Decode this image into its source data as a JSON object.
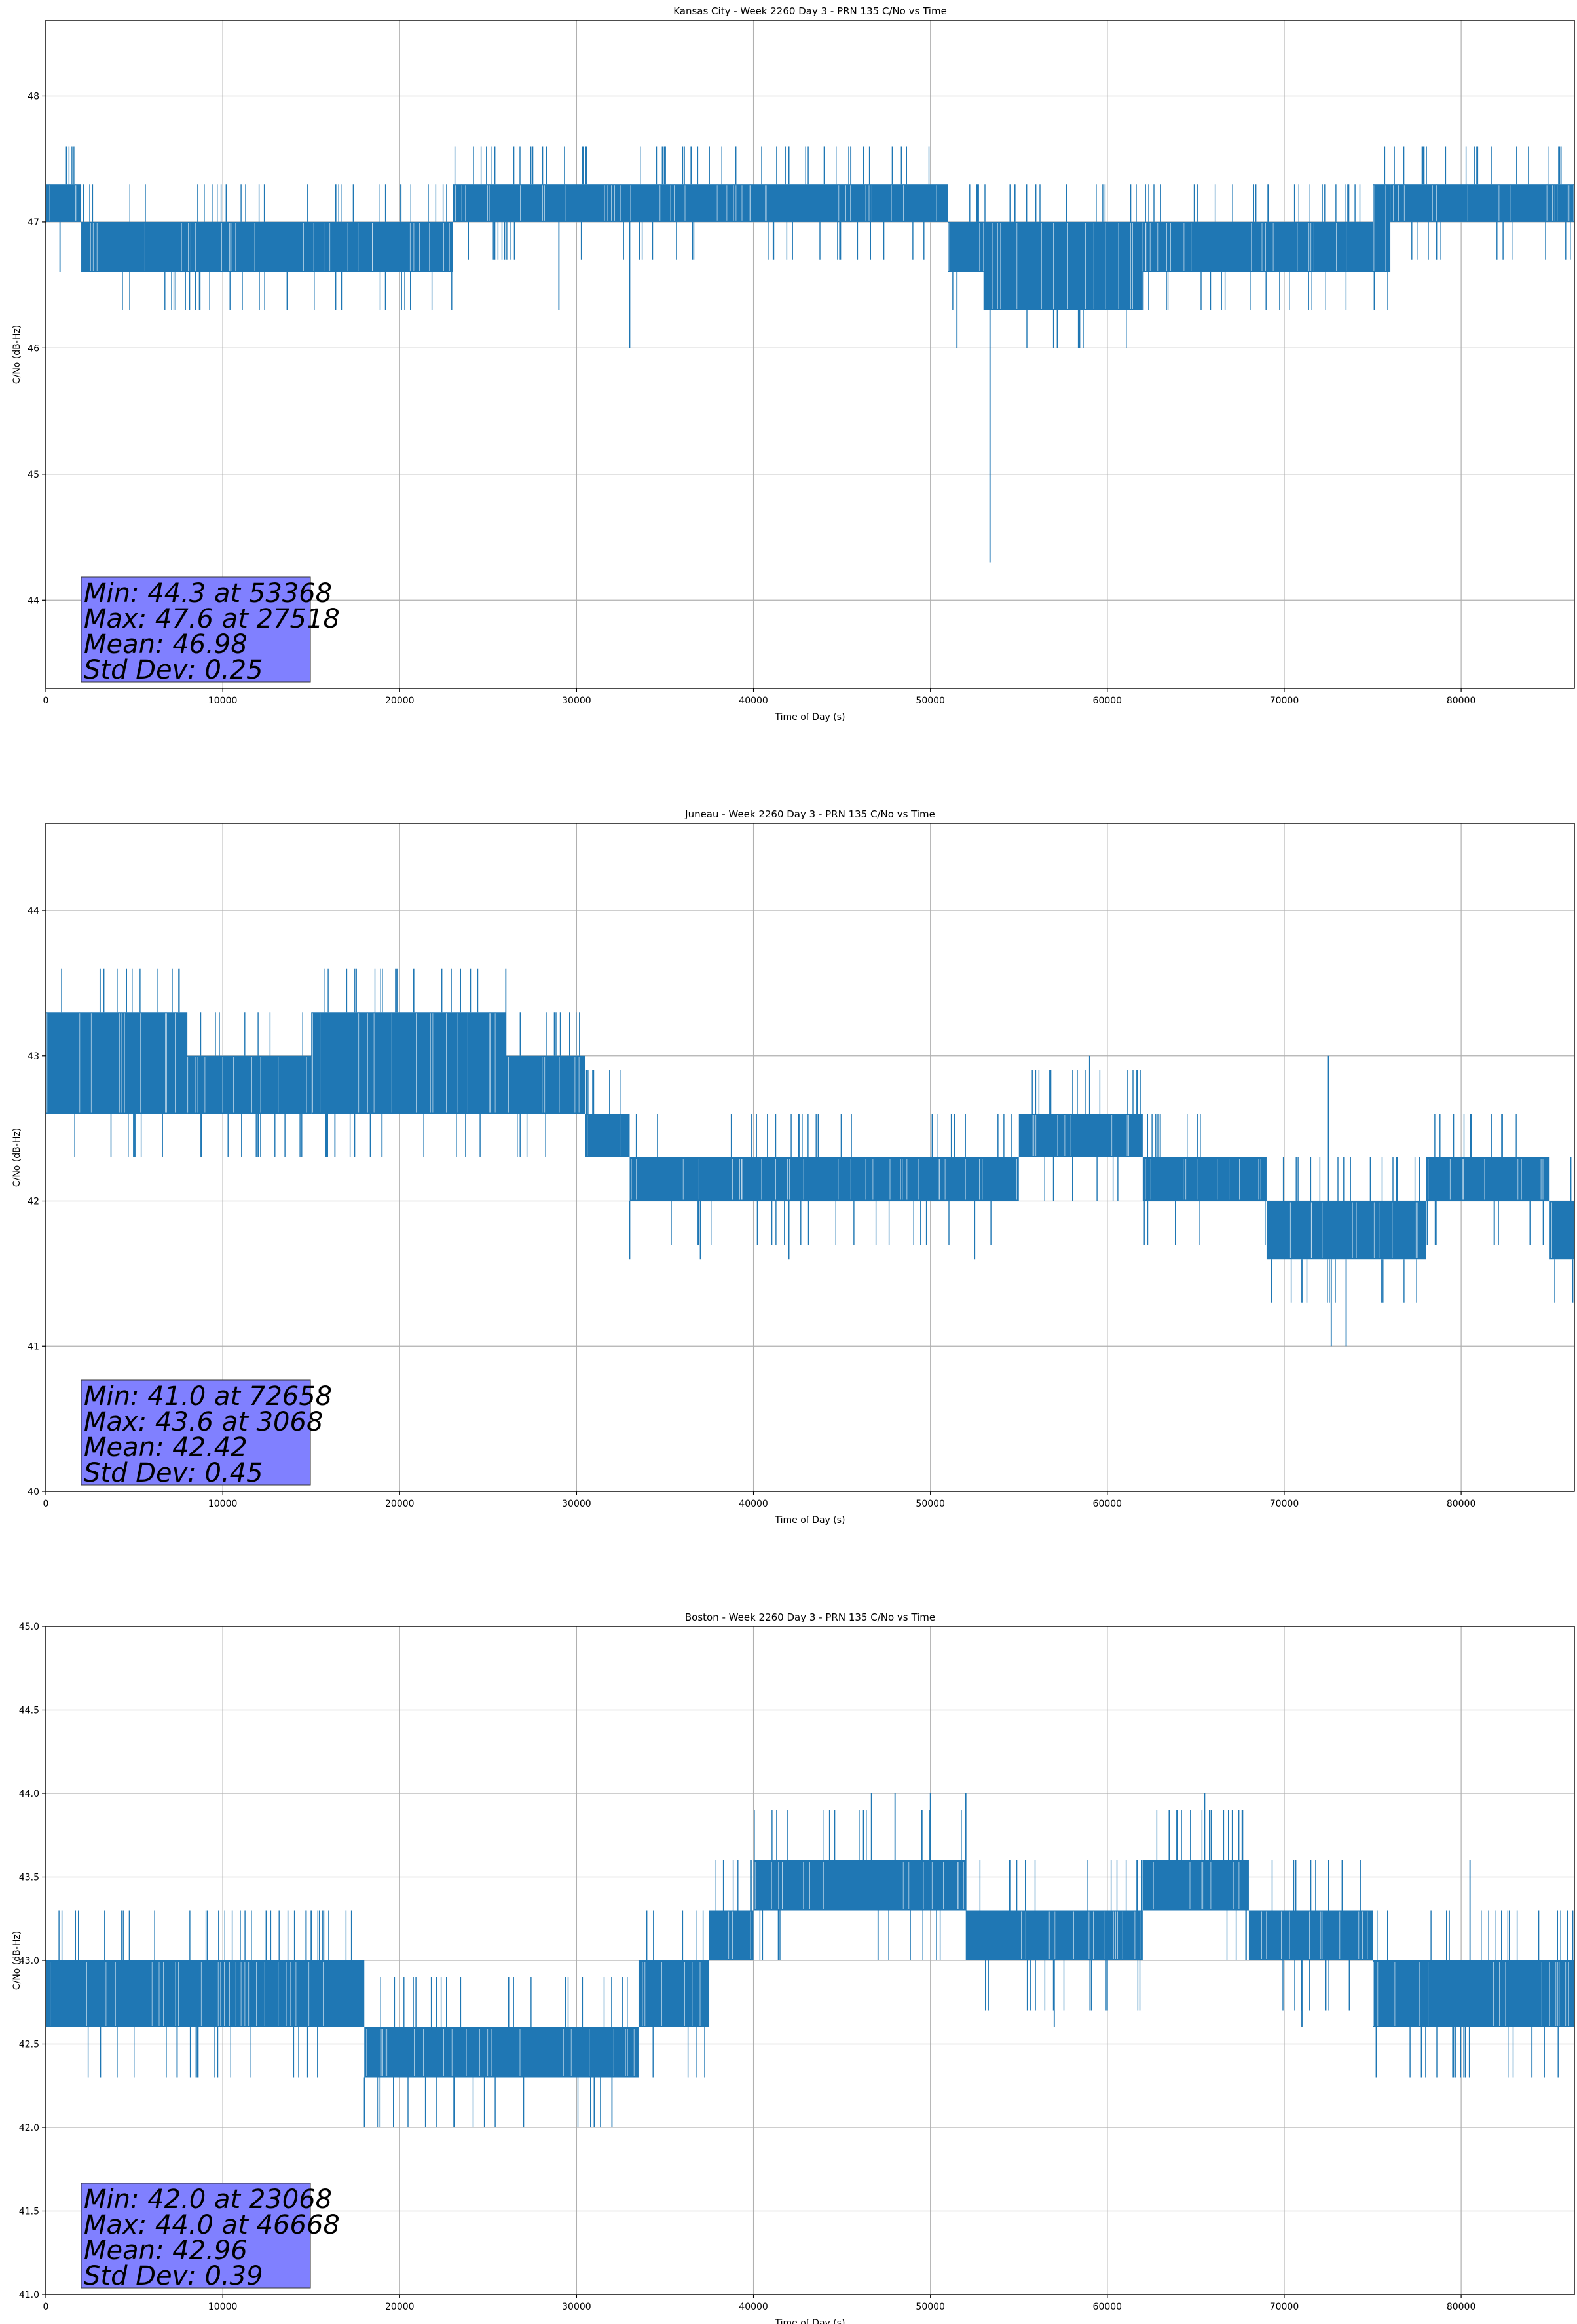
{
  "chart_data": [
    {
      "type": "line",
      "title": "Kansas City - Week 2260 Day 3 - PRN 135 C/No vs Time",
      "xlabel": "Time of Day (s)",
      "ylabel": "C/No (dB-Hz)",
      "xlim": [
        0,
        86400
      ],
      "ylim": [
        43.3,
        48.6
      ],
      "xticks": [
        0,
        10000,
        20000,
        30000,
        40000,
        50000,
        60000,
        70000,
        80000
      ],
      "yticks": [
        44,
        45,
        46,
        47,
        48
      ],
      "grid": true,
      "series_color": "#1f77b4",
      "annotation": [
        "Min: 44.3 at 53368",
        "Max: 47.6 at 27518",
        "Mean: 46.98",
        "Std Dev: 0.25"
      ],
      "band": [
        {
          "x": [
            0,
            2000
          ],
          "low": 47.0,
          "high": 47.3
        },
        {
          "x": [
            2000,
            23000
          ],
          "low": 46.6,
          "high": 47.0
        },
        {
          "x": [
            23000,
            51000
          ],
          "low": 47.0,
          "high": 47.3
        },
        {
          "x": [
            51000,
            53000
          ],
          "low": 46.6,
          "high": 47.0
        },
        {
          "x": [
            53000,
            62000
          ],
          "low": 46.3,
          "high": 47.0
        },
        {
          "x": [
            62000,
            75000
          ],
          "low": 46.6,
          "high": 47.0
        },
        {
          "x": [
            75000,
            76000
          ],
          "low": 46.6,
          "high": 47.3
        },
        {
          "x": [
            76000,
            86400
          ],
          "low": 47.0,
          "high": 47.3
        }
      ],
      "spikes": [
        {
          "x": 53368,
          "y": 44.3
        },
        {
          "x": 27518,
          "y": 47.6
        },
        {
          "x": 33000,
          "y": 46.0
        },
        {
          "x": 51500,
          "y": 46.0
        },
        {
          "x": 19200,
          "y": 46.3
        },
        {
          "x": 29000,
          "y": 46.3
        },
        {
          "x": 35000,
          "y": 47.6
        },
        {
          "x": 39000,
          "y": 47.6
        },
        {
          "x": 42000,
          "y": 47.6
        },
        {
          "x": 45500,
          "y": 47.6
        },
        {
          "x": 30500,
          "y": 47.6
        },
        {
          "x": 37500,
          "y": 47.6
        },
        {
          "x": 44000,
          "y": 47.6
        },
        {
          "x": 800,
          "y": 46.6
        }
      ]
    },
    {
      "type": "line",
      "title": "Juneau - Week 2260 Day 3 - PRN 135 C/No vs Time",
      "xlabel": "Time of Day (s)",
      "ylabel": "C/No (dB-Hz)",
      "xlim": [
        0,
        86400
      ],
      "ylim": [
        40,
        44.6
      ],
      "xticks": [
        0,
        10000,
        20000,
        30000,
        40000,
        50000,
        60000,
        70000,
        80000
      ],
      "yticks": [
        40,
        41,
        42,
        43,
        44
      ],
      "grid": true,
      "series_color": "#1f77b4",
      "annotation": [
        "Min: 41.0 at 72658",
        "Max: 43.6 at 3068",
        "Mean: 42.42",
        "Std Dev: 0.45"
      ],
      "band": [
        {
          "x": [
            0,
            8000
          ],
          "low": 42.6,
          "high": 43.3
        },
        {
          "x": [
            8000,
            15000
          ],
          "low": 42.6,
          "high": 43.0
        },
        {
          "x": [
            15000,
            26000
          ],
          "low": 42.6,
          "high": 43.3
        },
        {
          "x": [
            26000,
            30500
          ],
          "low": 42.6,
          "high": 43.0
        },
        {
          "x": [
            30500,
            33000
          ],
          "low": 42.3,
          "high": 42.6
        },
        {
          "x": [
            33000,
            55000
          ],
          "low": 42.0,
          "high": 42.3
        },
        {
          "x": [
            55000,
            62000
          ],
          "low": 42.3,
          "high": 42.6
        },
        {
          "x": [
            62000,
            69000
          ],
          "low": 42.0,
          "high": 42.3
        },
        {
          "x": [
            69000,
            78000
          ],
          "low": 41.6,
          "high": 42.0
        },
        {
          "x": [
            78000,
            85000
          ],
          "low": 42.0,
          "high": 42.3
        },
        {
          "x": [
            85000,
            86400
          ],
          "low": 41.6,
          "high": 42.0
        }
      ],
      "spikes": [
        {
          "x": 3068,
          "y": 43.6
        },
        {
          "x": 17000,
          "y": 43.6
        },
        {
          "x": 24000,
          "y": 43.6
        },
        {
          "x": 26000,
          "y": 43.6
        },
        {
          "x": 72658,
          "y": 41.0
        },
        {
          "x": 73500,
          "y": 41.0
        },
        {
          "x": 59000,
          "y": 43.0
        },
        {
          "x": 72500,
          "y": 43.0
        },
        {
          "x": 5000,
          "y": 42.3
        },
        {
          "x": 12000,
          "y": 42.3
        },
        {
          "x": 19000,
          "y": 42.3
        },
        {
          "x": 33000,
          "y": 41.6
        },
        {
          "x": 37000,
          "y": 41.6
        },
        {
          "x": 42000,
          "y": 41.6
        },
        {
          "x": 52500,
          "y": 41.6
        },
        {
          "x": 71000,
          "y": 41.3
        }
      ]
    },
    {
      "type": "line",
      "title": "Boston - Week 2260 Day 3 - PRN 135 C/No vs Time",
      "xlabel": "Time of Day (s)",
      "ylabel": "C/No (dB-Hz)",
      "xlim": [
        0,
        86400
      ],
      "ylim": [
        41.0,
        45.0
      ],
      "xticks": [
        0,
        10000,
        20000,
        30000,
        40000,
        50000,
        60000,
        70000,
        80000
      ],
      "yticks": [
        41.0,
        41.5,
        42.0,
        42.5,
        43.0,
        43.5,
        44.0,
        44.5,
        45.0
      ],
      "grid": true,
      "series_color": "#1f77b4",
      "annotation": [
        "Min: 42.0 at 23068",
        "Max: 44.0 at 46668",
        "Mean: 42.96",
        "Std Dev: 0.39"
      ],
      "band": [
        {
          "x": [
            0,
            18000
          ],
          "low": 42.6,
          "high": 43.0
        },
        {
          "x": [
            18000,
            33500
          ],
          "low": 42.3,
          "high": 42.6
        },
        {
          "x": [
            33500,
            37500
          ],
          "low": 42.6,
          "high": 43.0
        },
        {
          "x": [
            37500,
            40000
          ],
          "low": 43.0,
          "high": 43.3
        },
        {
          "x": [
            40000,
            52000
          ],
          "low": 43.3,
          "high": 43.6
        },
        {
          "x": [
            52000,
            62000
          ],
          "low": 43.0,
          "high": 43.3
        },
        {
          "x": [
            62000,
            68000
          ],
          "low": 43.3,
          "high": 43.6
        },
        {
          "x": [
            68000,
            75000
          ],
          "low": 43.0,
          "high": 43.3
        },
        {
          "x": [
            75000,
            86400
          ],
          "low": 42.6,
          "high": 43.0
        }
      ],
      "spikes": [
        {
          "x": 23068,
          "y": 42.0
        },
        {
          "x": 46668,
          "y": 44.0
        },
        {
          "x": 48000,
          "y": 44.0
        },
        {
          "x": 50000,
          "y": 44.0
        },
        {
          "x": 52000,
          "y": 44.0
        },
        {
          "x": 65500,
          "y": 44.0
        },
        {
          "x": 63500,
          "y": 43.9
        },
        {
          "x": 80500,
          "y": 43.6
        },
        {
          "x": 31000,
          "y": 42.0
        },
        {
          "x": 32000,
          "y": 42.0
        },
        {
          "x": 27000,
          "y": 42.0
        },
        {
          "x": 15000,
          "y": 43.3
        },
        {
          "x": 14000,
          "y": 42.3
        },
        {
          "x": 78000,
          "y": 42.3
        },
        {
          "x": 84000,
          "y": 42.3
        },
        {
          "x": 57000,
          "y": 42.6
        },
        {
          "x": 71000,
          "y": 42.6
        }
      ]
    }
  ]
}
